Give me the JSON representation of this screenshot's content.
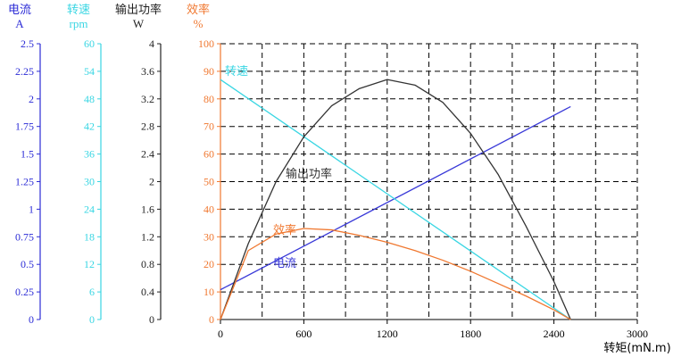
{
  "chart_data": {
    "type": "line",
    "x": {
      "label": "转矩(mN.m)",
      "ticks": [
        0,
        600,
        1200,
        1800,
        2400,
        3000
      ],
      "range": [
        0,
        3000
      ]
    },
    "grid": true,
    "axes": [
      {
        "id": "current",
        "title": "电流",
        "unit": "A",
        "color": "#2c2cd6",
        "range": [
          0,
          2.5
        ],
        "ticks": [
          "0",
          "0.25",
          "0.5",
          "0.75",
          "1",
          "1.25",
          "1.5",
          "1.75",
          "2",
          "2.25",
          "2.5"
        ]
      },
      {
        "id": "speed",
        "title": "转速",
        "unit": "rpm",
        "color": "#39d6e3",
        "range": [
          0,
          60
        ],
        "ticks": [
          "0",
          "6",
          "12",
          "18",
          "24",
          "30",
          "36",
          "42",
          "48",
          "54",
          "60"
        ]
      },
      {
        "id": "power",
        "title": "输出功率",
        "unit": "W",
        "color": "#222222",
        "range": [
          0,
          4
        ],
        "ticks": [
          "0",
          "0.4",
          "0.8",
          "1.2",
          "1.6",
          "2",
          "2.4",
          "2.8",
          "3.2",
          "3.6",
          "4"
        ]
      },
      {
        "id": "efficiency",
        "title": "效率",
        "unit": "%",
        "color": "#f07830",
        "range": [
          0,
          100
        ],
        "ticks": [
          "0",
          "10",
          "20",
          "30",
          "40",
          "50",
          "60",
          "70",
          "80",
          "90",
          "100"
        ]
      }
    ],
    "series": [
      {
        "name": "电流",
        "axis": "current",
        "color": "#3a3ad8",
        "x": [
          0,
          2520
        ],
        "y": [
          0.27,
          1.93
        ]
      },
      {
        "name": "转速",
        "axis": "speed",
        "color": "#39d6e3",
        "x": [
          0,
          2520
        ],
        "y": [
          52.2,
          0
        ]
      },
      {
        "name": "输出功率",
        "axis": "power",
        "color": "#333333",
        "x": [
          0,
          200,
          400,
          600,
          800,
          1000,
          1200,
          1400,
          1600,
          1800,
          2000,
          2200,
          2400,
          2520
        ],
        "y": [
          0,
          1.1,
          2.0,
          2.65,
          3.1,
          3.35,
          3.48,
          3.4,
          3.15,
          2.7,
          2.1,
          1.35,
          0.55,
          0
        ]
      },
      {
        "name": "效率",
        "axis": "efficiency",
        "color": "#f07830",
        "x": [
          0,
          200,
          400,
          600,
          800,
          1000,
          1200,
          1400,
          1600,
          1800,
          2000,
          2200,
          2400,
          2520
        ],
        "y": [
          0,
          25,
          31,
          33,
          32.5,
          30.5,
          28,
          25,
          21.5,
          17.5,
          13,
          8.5,
          3.5,
          0
        ]
      }
    ],
    "annotations": [
      {
        "text": "转速",
        "series": "转速"
      },
      {
        "text": "输出功率",
        "series": "输出功率"
      },
      {
        "text": "效率",
        "series": "效率"
      },
      {
        "text": "电流",
        "series": "电流"
      }
    ]
  }
}
